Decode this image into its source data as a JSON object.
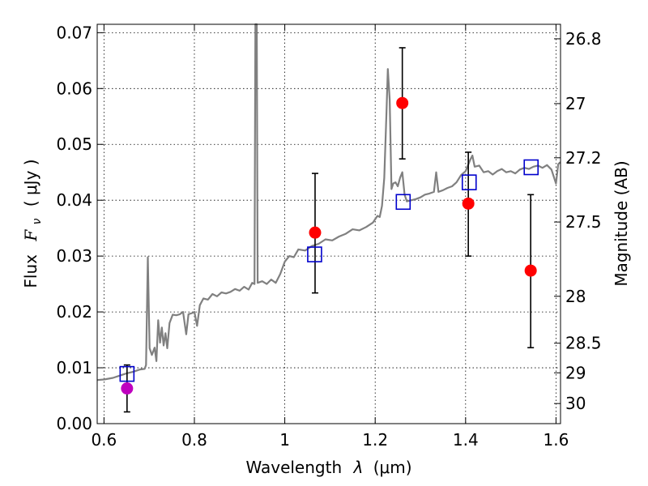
{
  "chart_data": {
    "type": "scatter",
    "xlabel": "Wavelength",
    "xlabel_symbol": "λ",
    "xlabel_unit": "(μm)",
    "ylabel": "Flux",
    "ylabel_symbol": "F",
    "ylabel_subscript": "ν",
    "ylabel_unit": "( μJy )",
    "y2label": "Magnitude (AB)",
    "xlim": [
      0.585,
      1.61
    ],
    "ylim": [
      0.0,
      0.0715
    ],
    "grid": true,
    "x_ticks": [
      0.6,
      0.8,
      1.0,
      1.2,
      1.4,
      1.6
    ],
    "x_tick_labels": [
      "0.6",
      "0.8",
      "1",
      "1.2",
      "1.4",
      "1.6"
    ],
    "y_ticks": [
      0.0,
      0.01,
      0.02,
      0.03,
      0.04,
      0.05,
      0.06,
      0.07
    ],
    "y_tick_labels": [
      "0.00",
      "0.01",
      "0.02",
      "0.03",
      "0.04",
      "0.05",
      "0.06",
      "0.07"
    ],
    "y2_ticks": [
      {
        "label": "26.8",
        "flux": 0.0689
      },
      {
        "label": "27",
        "flux": 0.0573
      },
      {
        "label": "27.2",
        "flux": 0.0476
      },
      {
        "label": "27.5",
        "flux": 0.0361
      },
      {
        "label": "28",
        "flux": 0.0228
      },
      {
        "label": "28.5",
        "flux": 0.0144
      },
      {
        "label": "29",
        "flux": 0.0091
      },
      {
        "label": "30",
        "flux": 0.0036
      }
    ],
    "colors": {
      "spectrum": "#808080",
      "observed": "#ff0000",
      "observed_first": "#bf00bf",
      "model_box": "#0000cc",
      "errorbar": "#000000"
    },
    "series": [
      {
        "kind": "spectrum",
        "points": [
          [
            0.585,
            0.0078
          ],
          [
            0.6,
            0.0079
          ],
          [
            0.62,
            0.0082
          ],
          [
            0.635,
            0.0086
          ],
          [
            0.65,
            0.009
          ],
          [
            0.665,
            0.0093
          ],
          [
            0.68,
            0.0097
          ],
          [
            0.69,
            0.0098
          ],
          [
            0.693,
            0.0105
          ],
          [
            0.697,
            0.0298
          ],
          [
            0.701,
            0.0135
          ],
          [
            0.706,
            0.0123
          ],
          [
            0.712,
            0.0136
          ],
          [
            0.716,
            0.0112
          ],
          [
            0.72,
            0.0185
          ],
          [
            0.724,
            0.0145
          ],
          [
            0.728,
            0.0172
          ],
          [
            0.732,
            0.014
          ],
          [
            0.736,
            0.0162
          ],
          [
            0.74,
            0.0135
          ],
          [
            0.745,
            0.018
          ],
          [
            0.752,
            0.0195
          ],
          [
            0.76,
            0.0194
          ],
          [
            0.768,
            0.0196
          ],
          [
            0.775,
            0.02
          ],
          [
            0.782,
            0.016
          ],
          [
            0.787,
            0.0196
          ],
          [
            0.795,
            0.0198
          ],
          [
            0.8,
            0.02
          ],
          [
            0.806,
            0.0175
          ],
          [
            0.812,
            0.0212
          ],
          [
            0.82,
            0.0224
          ],
          [
            0.83,
            0.0222
          ],
          [
            0.84,
            0.0232
          ],
          [
            0.85,
            0.0228
          ],
          [
            0.86,
            0.0235
          ],
          [
            0.87,
            0.0233
          ],
          [
            0.88,
            0.0236
          ],
          [
            0.89,
            0.0241
          ],
          [
            0.9,
            0.0238
          ],
          [
            0.91,
            0.0245
          ],
          [
            0.92,
            0.024
          ],
          [
            0.928,
            0.0252
          ],
          [
            0.933,
            0.025
          ],
          [
            0.935,
            0.0715
          ],
          [
            0.938,
            0.0715
          ],
          [
            0.94,
            0.0252
          ],
          [
            0.95,
            0.0255
          ],
          [
            0.96,
            0.025
          ],
          [
            0.97,
            0.0258
          ],
          [
            0.98,
            0.0252
          ],
          [
            0.99,
            0.0268
          ],
          [
            1.0,
            0.029
          ],
          [
            1.01,
            0.03
          ],
          [
            1.02,
            0.0298
          ],
          [
            1.03,
            0.0312
          ],
          [
            1.045,
            0.031
          ],
          [
            1.06,
            0.0318
          ],
          [
            1.075,
            0.0322
          ],
          [
            1.09,
            0.033
          ],
          [
            1.105,
            0.0328
          ],
          [
            1.12,
            0.0335
          ],
          [
            1.135,
            0.034
          ],
          [
            1.15,
            0.0348
          ],
          [
            1.165,
            0.0346
          ],
          [
            1.18,
            0.0352
          ],
          [
            1.195,
            0.036
          ],
          [
            1.205,
            0.0372
          ],
          [
            1.21,
            0.037
          ],
          [
            1.215,
            0.039
          ],
          [
            1.22,
            0.044
          ],
          [
            1.225,
            0.056
          ],
          [
            1.228,
            0.0635
          ],
          [
            1.232,
            0.058
          ],
          [
            1.236,
            0.042
          ],
          [
            1.24,
            0.043
          ],
          [
            1.245,
            0.0432
          ],
          [
            1.25,
            0.0425
          ],
          [
            1.255,
            0.044
          ],
          [
            1.26,
            0.045
          ],
          [
            1.265,
            0.041
          ],
          [
            1.27,
            0.0398
          ],
          [
            1.28,
            0.04
          ],
          [
            1.29,
            0.0402
          ],
          [
            1.3,
            0.0405
          ],
          [
            1.31,
            0.041
          ],
          [
            1.32,
            0.0412
          ],
          [
            1.33,
            0.0415
          ],
          [
            1.335,
            0.045
          ],
          [
            1.34,
            0.0415
          ],
          [
            1.35,
            0.0418
          ],
          [
            1.36,
            0.0422
          ],
          [
            1.37,
            0.0425
          ],
          [
            1.38,
            0.0432
          ],
          [
            1.39,
            0.0445
          ],
          [
            1.4,
            0.0452
          ],
          [
            1.41,
            0.0472
          ],
          [
            1.415,
            0.048
          ],
          [
            1.42,
            0.046
          ],
          [
            1.43,
            0.0462
          ],
          [
            1.44,
            0.045
          ],
          [
            1.45,
            0.0452
          ],
          [
            1.46,
            0.0446
          ],
          [
            1.47,
            0.0452
          ],
          [
            1.48,
            0.0456
          ],
          [
            1.49,
            0.045
          ],
          [
            1.5,
            0.0452
          ],
          [
            1.51,
            0.0448
          ],
          [
            1.52,
            0.0455
          ],
          [
            1.53,
            0.0458
          ],
          [
            1.54,
            0.0456
          ],
          [
            1.55,
            0.046
          ],
          [
            1.56,
            0.0462
          ],
          [
            1.57,
            0.0458
          ],
          [
            1.58,
            0.0463
          ],
          [
            1.59,
            0.0455
          ],
          [
            1.6,
            0.043
          ],
          [
            1.605,
            0.0465
          ],
          [
            1.61,
            0.0468
          ]
        ]
      },
      {
        "kind": "observed",
        "points": [
          {
            "x": 0.651,
            "y": 0.0063,
            "yerr_low": 0.0021,
            "yerr_high": 0.0105,
            "color": "observed_first"
          },
          {
            "x": 1.067,
            "y": 0.0342,
            "yerr_low": 0.0234,
            "yerr_high": 0.0448,
            "color": "observed"
          },
          {
            "x": 1.26,
            "y": 0.0574,
            "yerr_low": 0.0474,
            "yerr_high": 0.0673,
            "color": "observed"
          },
          {
            "x": 1.406,
            "y": 0.0394,
            "yerr_low": 0.03,
            "yerr_high": 0.0486,
            "color": "observed"
          },
          {
            "x": 1.544,
            "y": 0.0274,
            "yerr_low": 0.0136,
            "yerr_high": 0.041,
            "color": "observed"
          }
        ]
      },
      {
        "kind": "model",
        "points": [
          {
            "x": 0.651,
            "y": 0.0089
          },
          {
            "x": 1.066,
            "y": 0.0303
          },
          {
            "x": 1.262,
            "y": 0.0397
          },
          {
            "x": 1.408,
            "y": 0.0432
          },
          {
            "x": 1.545,
            "y": 0.0459
          }
        ]
      }
    ]
  }
}
